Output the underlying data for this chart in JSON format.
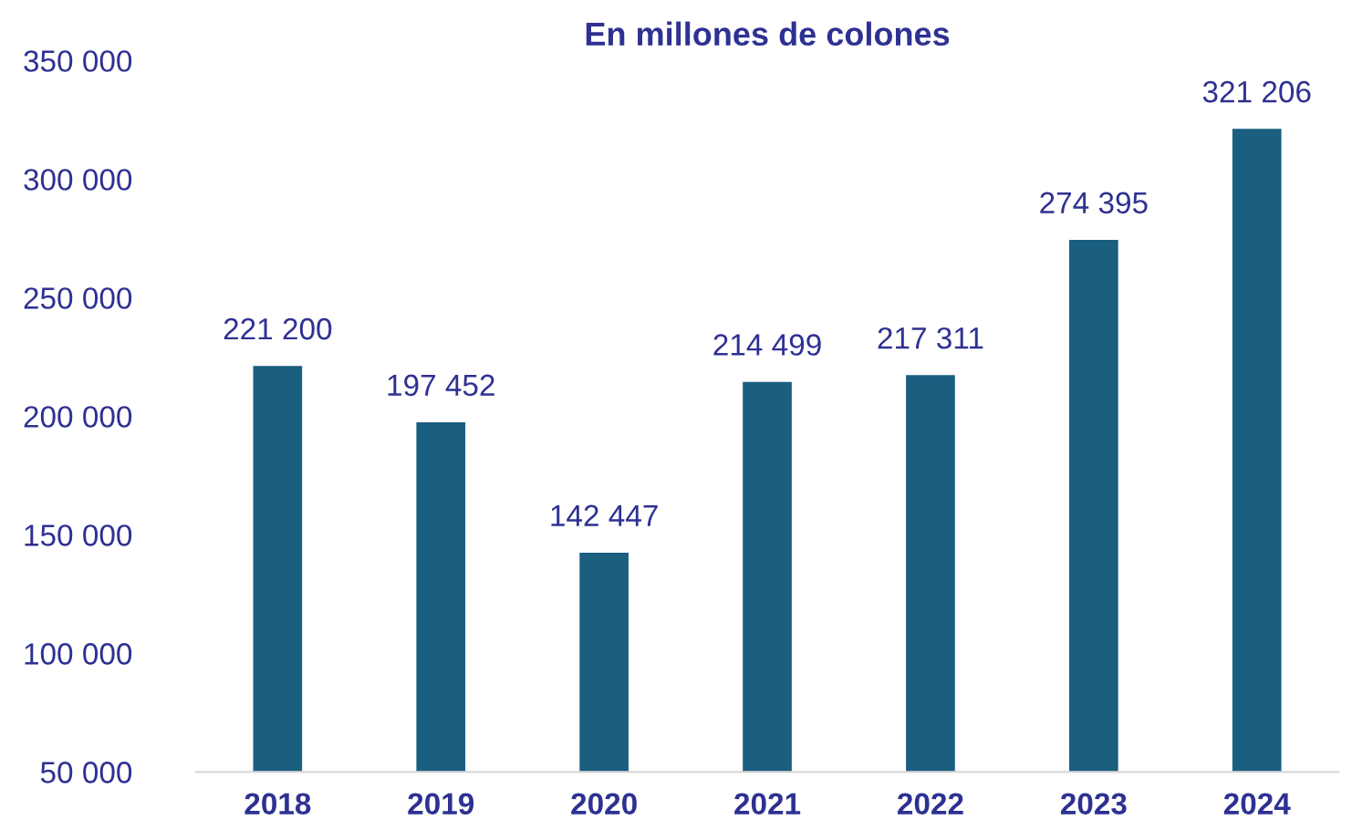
{
  "chart_data": {
    "type": "bar",
    "title": "En millones de colones",
    "categories": [
      "2018",
      "2019",
      "2020",
      "2021",
      "2022",
      "2023",
      "2024"
    ],
    "values": [
      221200,
      197452,
      142447,
      214499,
      217311,
      274395,
      321206
    ],
    "value_labels": [
      "221 200",
      "197 452",
      "142 447",
      "214 499",
      "217 311",
      "274 395",
      "321 206"
    ],
    "color": "#1a5e80",
    "ylim": [
      50000,
      350000
    ],
    "yticks": [
      {
        "value": 50000,
        "label": "50 000"
      },
      {
        "value": 100000,
        "label": "100 000"
      },
      {
        "value": 150000,
        "label": "150 000"
      },
      {
        "value": 200000,
        "label": "200 000"
      },
      {
        "value": 250000,
        "label": "250 000"
      },
      {
        "value": 300000,
        "label": "300 000"
      },
      {
        "value": 350000,
        "label": "350 000"
      }
    ],
    "grid": false
  }
}
